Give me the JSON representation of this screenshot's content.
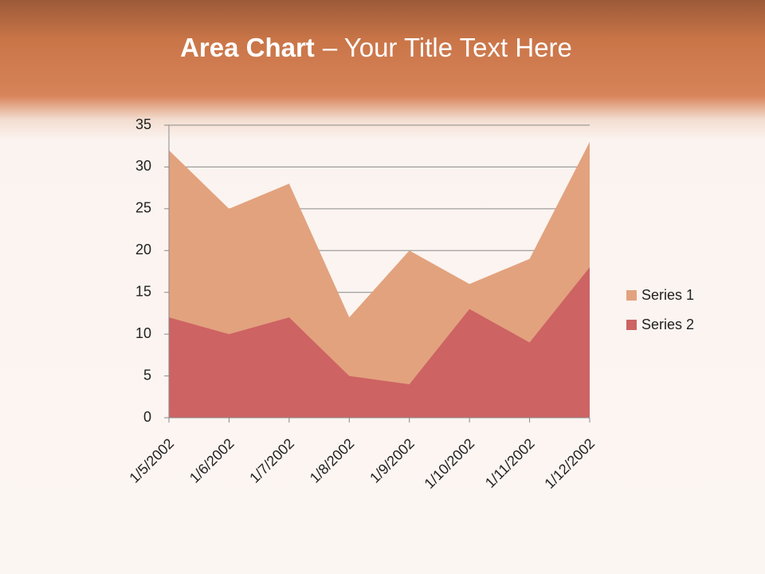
{
  "chart_data": {
    "type": "area",
    "title": [
      "Area Chart",
      "– Your Title Text Here"
    ],
    "categories": [
      "1/5/2002",
      "1/6/2002",
      "1/7/2002",
      "1/8/2002",
      "1/9/2002",
      "1/10/2002",
      "1/11/2002",
      "1/12/2002"
    ],
    "series": [
      {
        "name": "Series 1",
        "color": "#e2a27e",
        "values": [
          32,
          25,
          28,
          12,
          20,
          16,
          19,
          33
        ]
      },
      {
        "name": "Series 2",
        "color": "#cd6363",
        "values": [
          12,
          10,
          12,
          5,
          4,
          13,
          9,
          18
        ]
      }
    ],
    "ylim": [
      0,
      35
    ],
    "yticks": [
      0,
      5,
      10,
      15,
      20,
      25,
      30,
      35
    ],
    "grid": true,
    "legend": "right"
  }
}
